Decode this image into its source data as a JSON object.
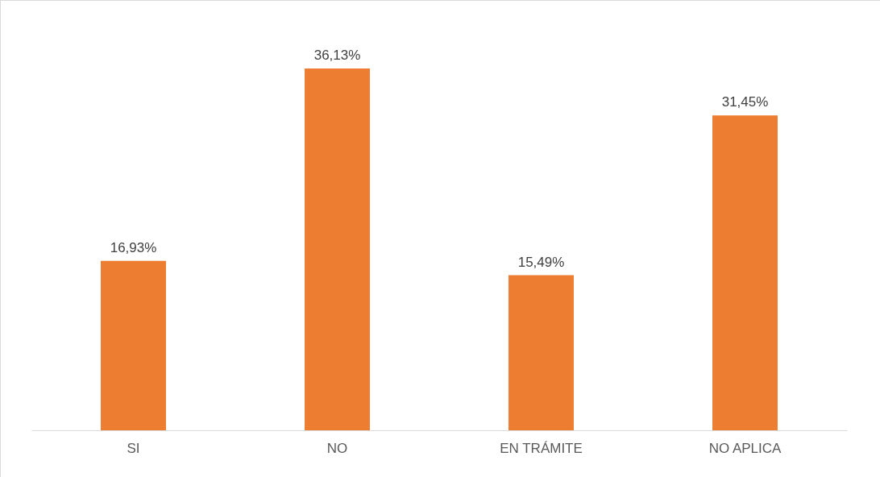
{
  "chart_data": {
    "type": "bar",
    "categories": [
      "SI",
      "NO",
      "EN TRÁMITE",
      "NO APLICA"
    ],
    "values": [
      16.93,
      36.13,
      15.49,
      31.45
    ],
    "value_labels": [
      "16,93%",
      "36,13%",
      "15,49%",
      "31,45%"
    ],
    "color": "#ed7d31"
  }
}
